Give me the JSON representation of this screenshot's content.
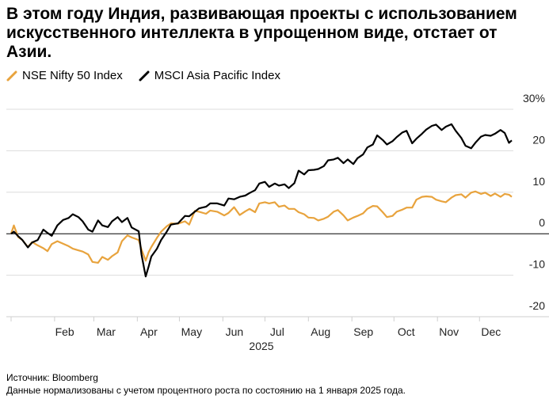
{
  "title": "В этом году Индия, развивающая проекты с использованием искусственного интеллекта в упрощенном виде, отстает от Азии.",
  "legend": [
    {
      "label": "NSE Nifty 50 Index",
      "color": "#e8a33d"
    },
    {
      "label": "MSCI Asia Pacific Index",
      "color": "#000000"
    }
  ],
  "footer": {
    "source": "Источник: Bloomberg",
    "note": "Данные нормализованы с учетом процентного роста по состоянию на 1 января 2025 года."
  },
  "chart_data": {
    "type": "line",
    "year_label": "2025",
    "x_tick_labels": [
      "Feb",
      "Mar",
      "Apr",
      "May",
      "Jun",
      "Jul",
      "Aug",
      "Sep",
      "Oct",
      "Nov",
      "Dec"
    ],
    "y_tick_labels": [
      "30%",
      "20",
      "10",
      "0",
      "-10",
      "-20"
    ],
    "y_ticks": [
      30,
      20,
      10,
      0,
      -10,
      -20
    ],
    "ylim": [
      -20,
      30
    ],
    "x_domain": [
      "2025-01-01",
      "2025-12-24"
    ],
    "series": [
      {
        "name": "NSE Nifty 50 Index",
        "color": "#e8a33d",
        "points": [
          [
            "2025-01-01",
            0.0
          ],
          [
            "2025-01-03",
            2.0
          ],
          [
            "2025-01-06",
            -0.8
          ],
          [
            "2025-01-09",
            -1.5
          ],
          [
            "2025-01-13",
            -3.2
          ],
          [
            "2025-01-16",
            -2.0
          ],
          [
            "2025-01-20",
            -2.8
          ],
          [
            "2025-01-24",
            -3.5
          ],
          [
            "2025-01-27",
            -4.2
          ],
          [
            "2025-01-30",
            -2.5
          ],
          [
            "2025-02-03",
            -1.8
          ],
          [
            "2025-02-07",
            -2.4
          ],
          [
            "2025-02-11",
            -3.0
          ],
          [
            "2025-02-14",
            -3.6
          ],
          [
            "2025-02-18",
            -4.0
          ],
          [
            "2025-02-21",
            -4.3
          ],
          [
            "2025-02-25",
            -5.0
          ],
          [
            "2025-02-28",
            -6.8
          ],
          [
            "2025-03-04",
            -7.0
          ],
          [
            "2025-03-07",
            -5.6
          ],
          [
            "2025-03-11",
            -6.3
          ],
          [
            "2025-03-14",
            -5.4
          ],
          [
            "2025-03-18",
            -4.5
          ],
          [
            "2025-03-21",
            -1.8
          ],
          [
            "2025-03-25",
            -0.4
          ],
          [
            "2025-03-28",
            -0.9
          ],
          [
            "2025-04-02",
            -1.5
          ],
          [
            "2025-04-04",
            -3.8
          ],
          [
            "2025-04-07",
            -6.5
          ],
          [
            "2025-04-09",
            -4.5
          ],
          [
            "2025-04-11",
            -3.2
          ],
          [
            "2025-04-15",
            -1.0
          ],
          [
            "2025-04-18",
            0.5
          ],
          [
            "2025-04-22",
            1.8
          ],
          [
            "2025-04-25",
            2.5
          ],
          [
            "2025-04-30",
            2.4
          ],
          [
            "2025-05-05",
            3.0
          ],
          [
            "2025-05-08",
            2.2
          ],
          [
            "2025-05-12",
            5.5
          ],
          [
            "2025-05-15",
            5.3
          ],
          [
            "2025-05-20",
            4.8
          ],
          [
            "2025-05-23",
            5.6
          ],
          [
            "2025-05-28",
            5.3
          ],
          [
            "2025-06-02",
            4.4
          ],
          [
            "2025-06-05",
            5.0
          ],
          [
            "2025-06-09",
            6.4
          ],
          [
            "2025-06-13",
            4.5
          ],
          [
            "2025-06-17",
            5.4
          ],
          [
            "2025-06-20",
            6.0
          ],
          [
            "2025-06-24",
            5.2
          ],
          [
            "2025-06-27",
            7.3
          ],
          [
            "2025-07-01",
            7.6
          ],
          [
            "2025-07-04",
            7.3
          ],
          [
            "2025-07-08",
            7.6
          ],
          [
            "2025-07-11",
            6.5
          ],
          [
            "2025-07-15",
            6.8
          ],
          [
            "2025-07-18",
            6.0
          ],
          [
            "2025-07-22",
            6.0
          ],
          [
            "2025-07-25",
            5.2
          ],
          [
            "2025-07-29",
            4.7
          ],
          [
            "2025-08-01",
            3.9
          ],
          [
            "2025-08-05",
            3.8
          ],
          [
            "2025-08-08",
            3.2
          ],
          [
            "2025-08-12",
            3.6
          ],
          [
            "2025-08-15",
            4.1
          ],
          [
            "2025-08-19",
            5.3
          ],
          [
            "2025-08-22",
            5.7
          ],
          [
            "2025-08-26",
            4.4
          ],
          [
            "2025-08-29",
            3.2
          ],
          [
            "2025-09-02",
            3.9
          ],
          [
            "2025-09-05",
            4.3
          ],
          [
            "2025-09-09",
            4.9
          ],
          [
            "2025-09-12",
            6.0
          ],
          [
            "2025-09-16",
            6.7
          ],
          [
            "2025-09-19",
            6.6
          ],
          [
            "2025-09-23",
            5.2
          ],
          [
            "2025-09-26",
            4.0
          ],
          [
            "2025-09-30",
            4.3
          ],
          [
            "2025-10-03",
            5.3
          ],
          [
            "2025-10-07",
            5.8
          ],
          [
            "2025-10-10",
            6.3
          ],
          [
            "2025-10-14",
            6.3
          ],
          [
            "2025-10-17",
            8.2
          ],
          [
            "2025-10-21",
            8.9
          ],
          [
            "2025-10-24",
            9.0
          ],
          [
            "2025-10-28",
            8.9
          ],
          [
            "2025-10-31",
            8.2
          ],
          [
            "2025-11-04",
            7.8
          ],
          [
            "2025-11-07",
            7.6
          ],
          [
            "2025-11-11",
            8.7
          ],
          [
            "2025-11-14",
            9.3
          ],
          [
            "2025-11-18",
            9.5
          ],
          [
            "2025-11-21",
            8.7
          ],
          [
            "2025-11-25",
            9.9
          ],
          [
            "2025-11-28",
            10.2
          ],
          [
            "2025-12-02",
            9.6
          ],
          [
            "2025-12-05",
            9.9
          ],
          [
            "2025-12-09",
            9.1
          ],
          [
            "2025-12-12",
            9.7
          ],
          [
            "2025-12-16",
            8.9
          ],
          [
            "2025-12-19",
            9.6
          ],
          [
            "2025-12-22",
            9.4
          ],
          [
            "2025-12-24",
            8.9
          ]
        ]
      },
      {
        "name": "MSCI Asia Pacific Index",
        "color": "#000000",
        "points": [
          [
            "2025-01-01",
            0.0
          ],
          [
            "2025-01-03",
            0.5
          ],
          [
            "2025-01-06",
            -0.6
          ],
          [
            "2025-01-09",
            -1.5
          ],
          [
            "2025-01-13",
            -3.3
          ],
          [
            "2025-01-16",
            -2.1
          ],
          [
            "2025-01-20",
            -1.5
          ],
          [
            "2025-01-24",
            1.0
          ],
          [
            "2025-01-27",
            0.2
          ],
          [
            "2025-01-30",
            -0.5
          ],
          [
            "2025-02-03",
            2.0
          ],
          [
            "2025-02-07",
            3.3
          ],
          [
            "2025-02-11",
            3.8
          ],
          [
            "2025-02-14",
            4.7
          ],
          [
            "2025-02-18",
            4.0
          ],
          [
            "2025-02-21",
            3.0
          ],
          [
            "2025-02-25",
            1.0
          ],
          [
            "2025-02-28",
            0.5
          ],
          [
            "2025-03-04",
            3.2
          ],
          [
            "2025-03-07",
            2.0
          ],
          [
            "2025-03-11",
            1.6
          ],
          [
            "2025-03-14",
            3.0
          ],
          [
            "2025-03-18",
            4.0
          ],
          [
            "2025-03-21",
            2.8
          ],
          [
            "2025-03-25",
            3.8
          ],
          [
            "2025-03-28",
            1.5
          ],
          [
            "2025-04-02",
            0.6
          ],
          [
            "2025-04-04",
            -5.0
          ],
          [
            "2025-04-07",
            -10.3
          ],
          [
            "2025-04-09",
            -8.0
          ],
          [
            "2025-04-11",
            -5.5
          ],
          [
            "2025-04-15",
            -3.6
          ],
          [
            "2025-04-18",
            -1.5
          ],
          [
            "2025-04-22",
            0.5
          ],
          [
            "2025-04-25",
            2.2
          ],
          [
            "2025-04-30",
            2.5
          ],
          [
            "2025-05-05",
            4.3
          ],
          [
            "2025-05-08",
            4.2
          ],
          [
            "2025-05-12",
            5.3
          ],
          [
            "2025-05-15",
            6.1
          ],
          [
            "2025-05-20",
            6.5
          ],
          [
            "2025-05-23",
            7.3
          ],
          [
            "2025-05-28",
            7.3
          ],
          [
            "2025-06-02",
            6.8
          ],
          [
            "2025-06-05",
            8.5
          ],
          [
            "2025-06-09",
            8.3
          ],
          [
            "2025-06-13",
            8.9
          ],
          [
            "2025-06-17",
            9.2
          ],
          [
            "2025-06-20",
            9.8
          ],
          [
            "2025-06-24",
            10.5
          ],
          [
            "2025-06-27",
            12.1
          ],
          [
            "2025-07-01",
            12.5
          ],
          [
            "2025-07-04",
            11.3
          ],
          [
            "2025-07-08",
            12.1
          ],
          [
            "2025-07-11",
            11.6
          ],
          [
            "2025-07-15",
            11.9
          ],
          [
            "2025-07-18",
            11.0
          ],
          [
            "2025-07-22",
            12.2
          ],
          [
            "2025-07-25",
            15.2
          ],
          [
            "2025-07-29",
            14.3
          ],
          [
            "2025-08-01",
            15.3
          ],
          [
            "2025-08-05",
            15.4
          ],
          [
            "2025-08-08",
            15.6
          ],
          [
            "2025-08-12",
            16.3
          ],
          [
            "2025-08-15",
            17.7
          ],
          [
            "2025-08-19",
            17.9
          ],
          [
            "2025-08-22",
            18.3
          ],
          [
            "2025-08-26",
            17.0
          ],
          [
            "2025-08-29",
            17.9
          ],
          [
            "2025-09-02",
            16.8
          ],
          [
            "2025-09-05",
            18.2
          ],
          [
            "2025-09-09",
            19.1
          ],
          [
            "2025-09-12",
            20.8
          ],
          [
            "2025-09-16",
            21.5
          ],
          [
            "2025-09-19",
            23.7
          ],
          [
            "2025-09-23",
            22.6
          ],
          [
            "2025-09-26",
            21.5
          ],
          [
            "2025-09-30",
            22.3
          ],
          [
            "2025-10-03",
            23.3
          ],
          [
            "2025-10-07",
            24.4
          ],
          [
            "2025-10-10",
            24.8
          ],
          [
            "2025-10-14",
            21.8
          ],
          [
            "2025-10-17",
            22.9
          ],
          [
            "2025-10-21",
            24.1
          ],
          [
            "2025-10-24",
            25.1
          ],
          [
            "2025-10-28",
            26.0
          ],
          [
            "2025-10-31",
            26.3
          ],
          [
            "2025-11-04",
            25.0
          ],
          [
            "2025-11-07",
            25.8
          ],
          [
            "2025-11-11",
            26.4
          ],
          [
            "2025-11-14",
            24.8
          ],
          [
            "2025-11-18",
            23.1
          ],
          [
            "2025-11-21",
            21.2
          ],
          [
            "2025-11-25",
            20.6
          ],
          [
            "2025-11-28",
            21.9
          ],
          [
            "2025-12-02",
            23.4
          ],
          [
            "2025-12-05",
            23.8
          ],
          [
            "2025-12-09",
            23.6
          ],
          [
            "2025-12-12",
            24.1
          ],
          [
            "2025-12-16",
            25.0
          ],
          [
            "2025-12-19",
            24.3
          ],
          [
            "2025-12-22",
            21.9
          ],
          [
            "2025-12-24",
            22.5
          ]
        ]
      }
    ]
  }
}
